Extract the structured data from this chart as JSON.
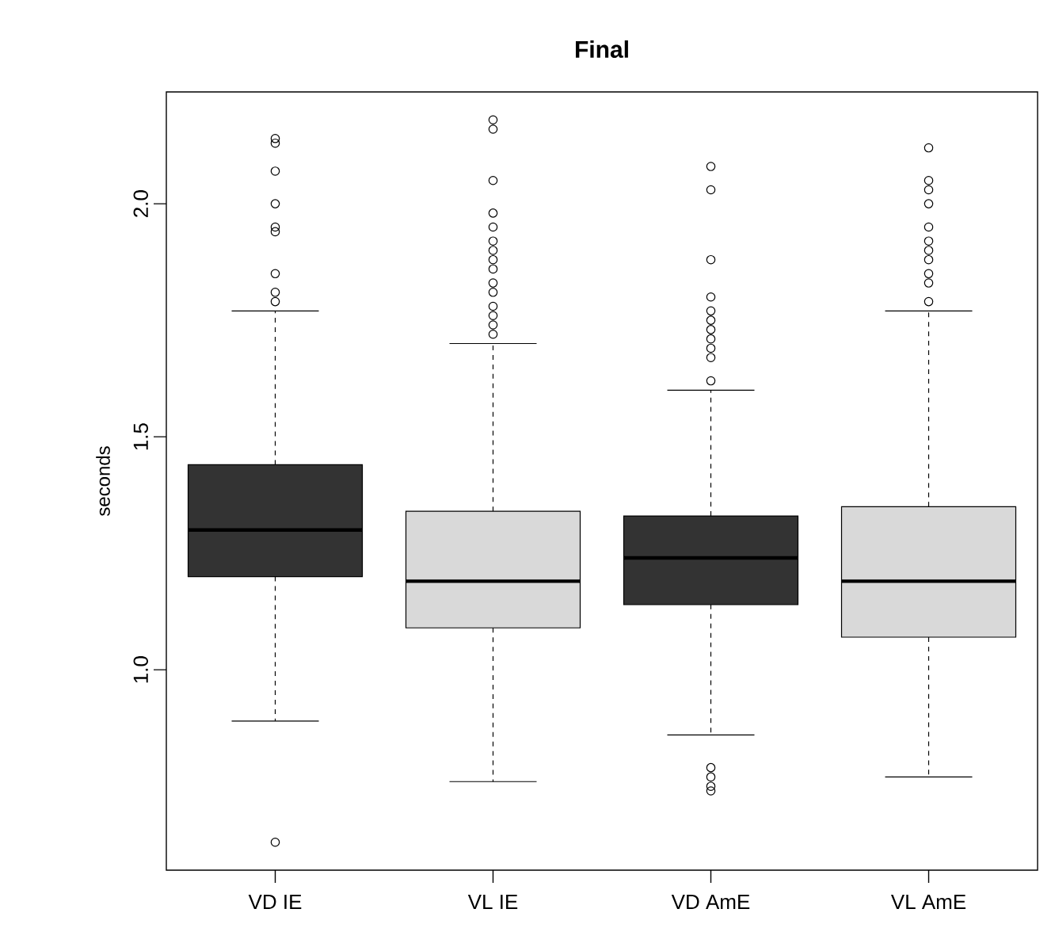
{
  "chart_data": {
    "type": "box",
    "title": "Final",
    "ylabel": "seconds",
    "categories": [
      "VD IE",
      "VL IE",
      "VD AmE",
      "VL AmE"
    ],
    "colors": [
      "#333333",
      "#d9d9d9",
      "#333333",
      "#d9d9d9"
    ],
    "boxes": [
      {
        "low": 0.89,
        "q1": 1.2,
        "median": 1.3,
        "q3": 1.44,
        "high": 1.77,
        "outliers": [
          2.14,
          2.13,
          2.07,
          2.0,
          1.95,
          1.94,
          1.85,
          1.81,
          1.79,
          0.63
        ]
      },
      {
        "low": 0.76,
        "q1": 1.09,
        "median": 1.19,
        "q3": 1.34,
        "high": 1.7,
        "outliers": [
          2.18,
          2.16,
          2.05,
          1.98,
          1.95,
          1.92,
          1.9,
          1.88,
          1.86,
          1.83,
          1.81,
          1.78,
          1.76,
          1.74,
          1.72
        ]
      },
      {
        "low": 0.86,
        "q1": 1.14,
        "median": 1.24,
        "q3": 1.33,
        "high": 1.6,
        "outliers": [
          2.08,
          2.03,
          1.88,
          1.8,
          1.77,
          1.75,
          1.73,
          1.71,
          1.69,
          1.67,
          1.62,
          0.79,
          0.77,
          0.75,
          0.74
        ]
      },
      {
        "low": 0.77,
        "q1": 1.07,
        "median": 1.19,
        "q3": 1.35,
        "high": 1.77,
        "outliers": [
          2.12,
          2.05,
          2.03,
          2.0,
          1.95,
          1.92,
          1.9,
          1.88,
          1.85,
          1.83,
          1.79
        ]
      }
    ],
    "ylim": [
      0.57,
      2.24
    ],
    "yticks": [
      {
        "value": 1,
        "label": "1.0"
      },
      1.5,
      {
        "value": 2,
        "label": "2.0"
      }
    ],
    "marker": "circle"
  }
}
